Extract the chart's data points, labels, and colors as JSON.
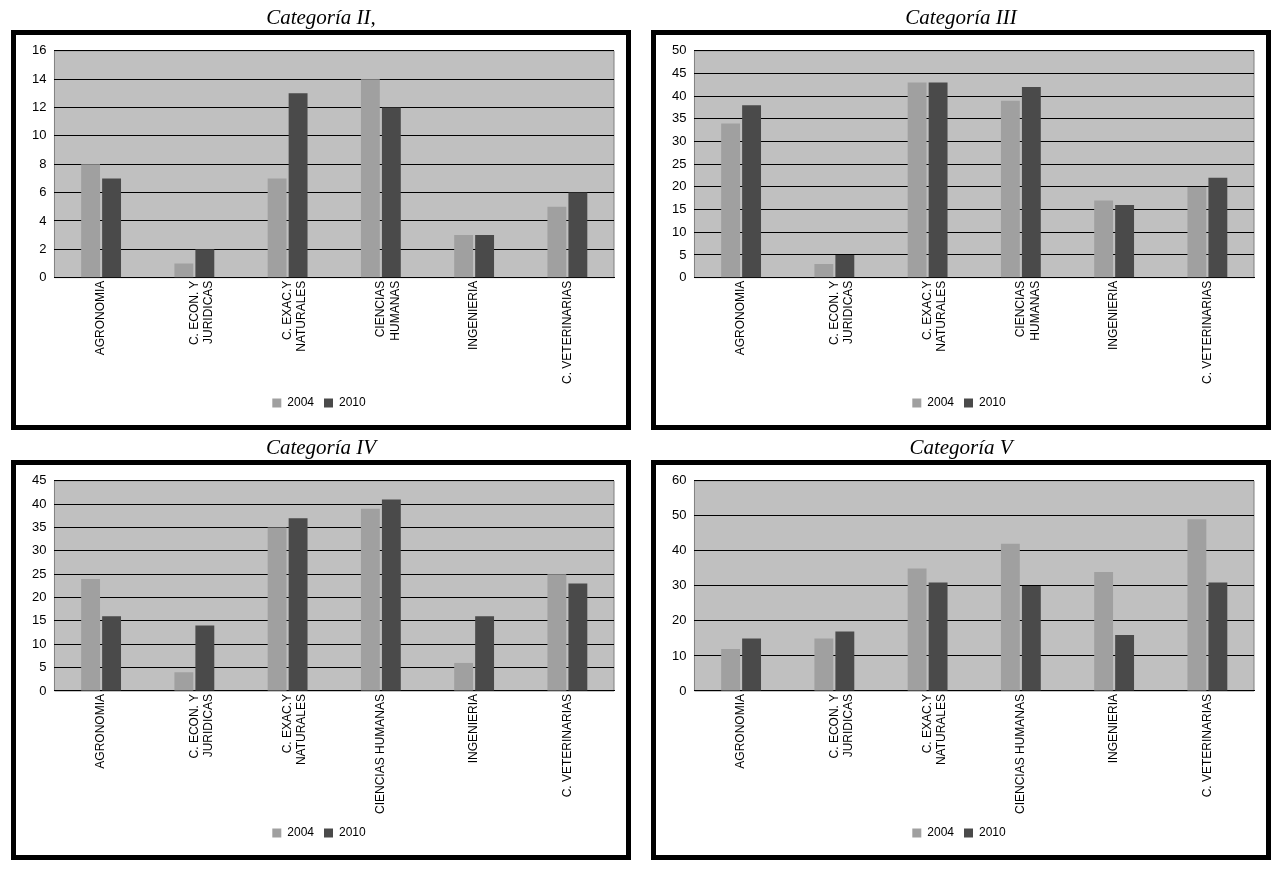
{
  "chart_data": [
    {
      "type": "bar",
      "title": "Categoría II,",
      "categories": [
        "AGRONOMIA",
        "C. ECON. Y\nJURIDICAS",
        "C. EXAC.Y\nNATURALES",
        "CIENCIAS\nHUMANAS",
        "INGENIERIA",
        "C. VETERINARIAS"
      ],
      "series": [
        {
          "name": "2004",
          "color": "#a0a0a0",
          "values": [
            8,
            1,
            7,
            14,
            3,
            5
          ]
        },
        {
          "name": "2010",
          "color": "#4a4a4a",
          "values": [
            7,
            2,
            13,
            12,
            3,
            6
          ]
        }
      ],
      "ylim": [
        0,
        16
      ],
      "yticks": [
        0,
        2,
        4,
        6,
        8,
        10,
        12,
        14,
        16
      ],
      "grid": "y",
      "legend": "bottom"
    },
    {
      "type": "bar",
      "title": "Categoría III",
      "categories": [
        "AGRONOMIA",
        "C. ECON. Y\nJURIDICAS",
        "C. EXAC.Y\nNATURALES",
        "CIENCIAS\nHUMANAS",
        "INGENIERIA",
        "C. VETERINARIAS"
      ],
      "series": [
        {
          "name": "2004",
          "color": "#a0a0a0",
          "values": [
            34,
            3,
            43,
            39,
            17,
            20
          ]
        },
        {
          "name": "2010",
          "color": "#4a4a4a",
          "values": [
            38,
            5,
            43,
            42,
            16,
            22
          ]
        }
      ],
      "ylim": [
        0,
        50
      ],
      "yticks": [
        0,
        5,
        10,
        15,
        20,
        25,
        30,
        35,
        40,
        45,
        50
      ],
      "grid": "y",
      "legend": "bottom"
    },
    {
      "type": "bar",
      "title": "Categoría IV",
      "categories": [
        "AGRONOMIA",
        "C. ECON. Y\nJURIDICAS",
        "C. EXAC.Y\nNATURALES",
        "CIENCIAS HUMANAS",
        "INGENIERIA",
        "C. VETERINARIAS"
      ],
      "series": [
        {
          "name": "2004",
          "color": "#a0a0a0",
          "values": [
            24,
            4,
            35,
            39,
            6,
            25
          ]
        },
        {
          "name": "2010",
          "color": "#4a4a4a",
          "values": [
            16,
            14,
            37,
            41,
            16,
            23
          ]
        }
      ],
      "ylim": [
        0,
        45
      ],
      "yticks": [
        0,
        5,
        10,
        15,
        20,
        25,
        30,
        35,
        40,
        45
      ],
      "grid": "y",
      "legend": "bottom"
    },
    {
      "type": "bar",
      "title": "Categoría V",
      "categories": [
        "AGRONOMIA",
        "C. ECON. Y\nJURIDICAS",
        "C. EXAC.Y\nNATURALES",
        "CIENCIAS HUMANAS",
        "INGENIERIA",
        "C. VETERINARIAS"
      ],
      "series": [
        {
          "name": "2004",
          "color": "#a0a0a0",
          "values": [
            12,
            15,
            35,
            42,
            34,
            49
          ]
        },
        {
          "name": "2010",
          "color": "#4a4a4a",
          "values": [
            15,
            17,
            31,
            30,
            16,
            31
          ]
        }
      ],
      "ylim": [
        0,
        60
      ],
      "yticks": [
        0,
        10,
        20,
        30,
        40,
        50,
        60
      ],
      "grid": "y",
      "legend": "bottom"
    }
  ]
}
